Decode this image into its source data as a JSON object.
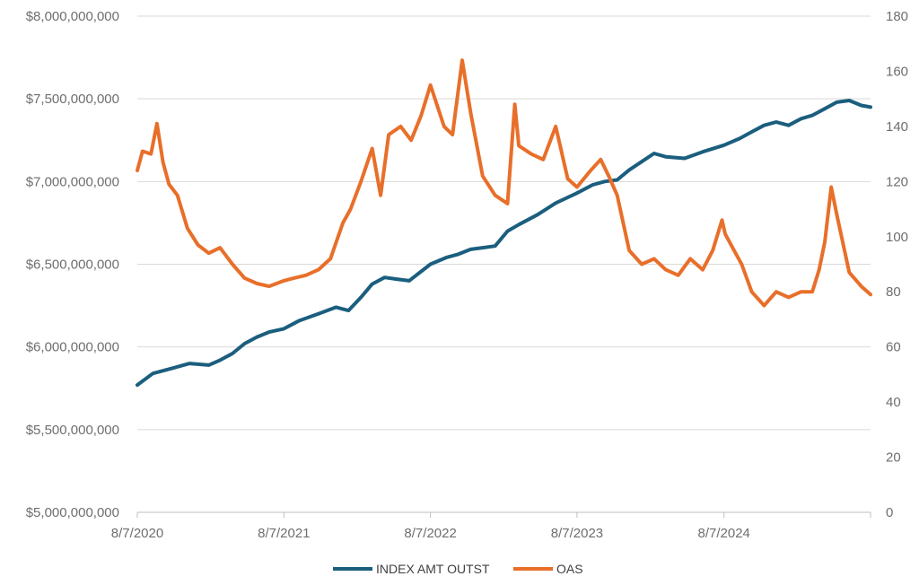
{
  "chart_data": {
    "type": "line",
    "colors": {
      "index": "#1b5e7e",
      "oas": "#e86f2a",
      "grid": "#d9d9d9",
      "axis": "#bcbec0"
    },
    "x_ticks": [
      "8/7/2020",
      "8/7/2021",
      "8/7/2022",
      "8/7/2023",
      "8/7/2024"
    ],
    "x_range": [
      "2020-08-07",
      "2025-08-07"
    ],
    "y_left": {
      "ticks": [
        "$5,000,000,000",
        "$5,500,000,000",
        "$6,000,000,000",
        "$6,500,000,000",
        "$7,000,000,000",
        "$7,500,000,000",
        "$8,000,000,000"
      ],
      "range": [
        5000000000,
        8000000000
      ]
    },
    "y_right": {
      "ticks": [
        "0",
        "20",
        "40",
        "60",
        "80",
        "100",
        "120",
        "140",
        "160",
        "180"
      ],
      "range": [
        0,
        180
      ]
    },
    "grid": true,
    "legend_position": "bottom-center",
    "series": [
      {
        "name": "INDEX AMT OUTST",
        "axis": "left",
        "x": [
          "2020-08-07",
          "2020-09-15",
          "2020-11-01",
          "2020-12-15",
          "2021-02-01",
          "2021-03-01",
          "2021-04-01",
          "2021-05-01",
          "2021-06-01",
          "2021-07-01",
          "2021-08-07",
          "2021-09-15",
          "2021-11-01",
          "2021-12-15",
          "2022-01-15",
          "2022-02-15",
          "2022-03-15",
          "2022-04-15",
          "2022-05-15",
          "2022-06-15",
          "2022-08-07",
          "2022-09-15",
          "2022-10-15",
          "2022-11-15",
          "2022-12-15",
          "2023-01-15",
          "2023-02-15",
          "2023-03-15",
          "2023-05-01",
          "2023-06-15",
          "2023-08-07",
          "2023-09-15",
          "2023-10-15",
          "2023-11-15",
          "2023-12-15",
          "2024-01-15",
          "2024-02-15",
          "2024-03-15",
          "2024-05-01",
          "2024-06-15",
          "2024-08-07",
          "2024-09-15",
          "2024-10-15",
          "2024-11-15",
          "2024-12-15",
          "2025-01-15",
          "2025-02-15",
          "2025-03-15",
          "2025-04-15",
          "2025-05-15",
          "2025-06-15",
          "2025-07-15",
          "2025-08-07"
        ],
        "values": [
          5770000000,
          5840000000,
          5870000000,
          5900000000,
          5890000000,
          5920000000,
          5960000000,
          6020000000,
          6060000000,
          6090000000,
          6110000000,
          6160000000,
          6200000000,
          6240000000,
          6220000000,
          6300000000,
          6380000000,
          6420000000,
          6410000000,
          6400000000,
          6500000000,
          6540000000,
          6560000000,
          6590000000,
          6600000000,
          6610000000,
          6700000000,
          6740000000,
          6800000000,
          6870000000,
          6930000000,
          6980000000,
          7000000000,
          7010000000,
          7070000000,
          7120000000,
          7170000000,
          7150000000,
          7140000000,
          7180000000,
          7220000000,
          7260000000,
          7300000000,
          7340000000,
          7360000000,
          7340000000,
          7380000000,
          7400000000,
          7440000000,
          7480000000,
          7490000000,
          7460000000,
          7450000000
        ]
      },
      {
        "name": "OAS",
        "axis": "right",
        "x": [
          "2020-08-07",
          "2020-08-20",
          "2020-09-10",
          "2020-09-25",
          "2020-10-10",
          "2020-10-25",
          "2020-11-15",
          "2020-12-10",
          "2021-01-05",
          "2021-02-01",
          "2021-03-01",
          "2021-04-01",
          "2021-05-01",
          "2021-06-01",
          "2021-07-01",
          "2021-08-07",
          "2021-09-01",
          "2021-10-01",
          "2021-11-01",
          "2021-12-01",
          "2022-01-01",
          "2022-01-20",
          "2022-02-15",
          "2022-03-15",
          "2022-04-05",
          "2022-04-25",
          "2022-05-25",
          "2022-06-20",
          "2022-07-15",
          "2022-08-07",
          "2022-09-10",
          "2022-10-01",
          "2022-10-25",
          "2022-11-15",
          "2022-12-15",
          "2023-01-15",
          "2023-02-15",
          "2023-03-05",
          "2023-03-15",
          "2023-04-15",
          "2023-05-15",
          "2023-06-15",
          "2023-07-15",
          "2023-08-07",
          "2023-09-10",
          "2023-10-05",
          "2023-10-25",
          "2023-11-15",
          "2023-12-15",
          "2024-01-15",
          "2024-02-15",
          "2024-03-15",
          "2024-04-15",
          "2024-05-15",
          "2024-06-15",
          "2024-07-10",
          "2024-08-02",
          "2024-08-10",
          "2024-09-01",
          "2024-09-20",
          "2024-10-15",
          "2024-11-15",
          "2024-12-15",
          "2025-01-15",
          "2025-02-15",
          "2025-03-15",
          "2025-04-01",
          "2025-04-15",
          "2025-05-01",
          "2025-05-15",
          "2025-06-15",
          "2025-07-15",
          "2025-08-07"
        ],
        "values": [
          124,
          131,
          130,
          141,
          127,
          119,
          115,
          103,
          97,
          94,
          96,
          90,
          85,
          83,
          82,
          84,
          85,
          86,
          88,
          92,
          105,
          110,
          120,
          132,
          115,
          137,
          140,
          135,
          144,
          155,
          140,
          137,
          164,
          145,
          122,
          115,
          112,
          148,
          133,
          130,
          128,
          140,
          121,
          118,
          124,
          128,
          122,
          115,
          95,
          90,
          92,
          88,
          86,
          92,
          88,
          95,
          106,
          101,
          95,
          90,
          80,
          75,
          80,
          78,
          80,
          80,
          88,
          98,
          118,
          108,
          87,
          82,
          79
        ]
      }
    ]
  }
}
